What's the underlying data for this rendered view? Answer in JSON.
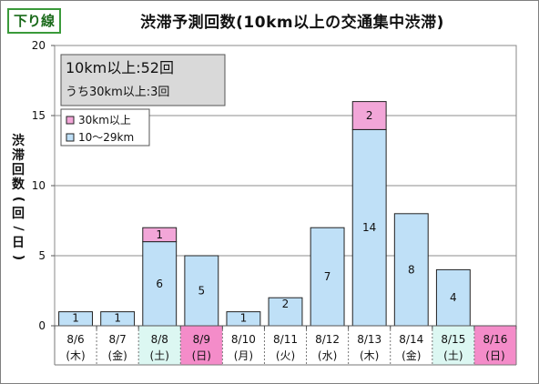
{
  "direction": "下り線",
  "title": "渋滞予測回数(10km以上の交通集中渋滞)",
  "summary": {
    "line1": "10km以上:52回",
    "line2": "うち30km以上:3回"
  },
  "colors": {
    "long": "#f2a6d8",
    "short": "#bfe0f7",
    "weekday_bg": "#ffffff",
    "saturday_bg": "#dcf7f2",
    "sunday_bg": "#f48cc9"
  },
  "chart_data": {
    "type": "bar",
    "stacked": true,
    "ylabel": "渋滞回数(回/日)",
    "ylim": [
      0,
      20
    ],
    "yticks": [
      0,
      5,
      10,
      15,
      20
    ],
    "grid": true,
    "legend_position": "top-left",
    "categories": [
      {
        "date": "8/6",
        "dow": "(木)",
        "day_type": "weekday"
      },
      {
        "date": "8/7",
        "dow": "(金)",
        "day_type": "weekday"
      },
      {
        "date": "8/8",
        "dow": "(土)",
        "day_type": "saturday"
      },
      {
        "date": "8/9",
        "dow": "(日)",
        "day_type": "sunday"
      },
      {
        "date": "8/10",
        "dow": "(月)",
        "day_type": "weekday"
      },
      {
        "date": "8/11",
        "dow": "(火)",
        "day_type": "weekday"
      },
      {
        "date": "8/12",
        "dow": "(水)",
        "day_type": "weekday"
      },
      {
        "date": "8/13",
        "dow": "(木)",
        "day_type": "weekday"
      },
      {
        "date": "8/14",
        "dow": "(金)",
        "day_type": "weekday"
      },
      {
        "date": "8/15",
        "dow": "(土)",
        "day_type": "saturday"
      },
      {
        "date": "8/16",
        "dow": "(日)",
        "day_type": "sunday"
      }
    ],
    "series": [
      {
        "name": "10〜29km",
        "key": "short",
        "values": [
          1,
          1,
          6,
          5,
          1,
          2,
          7,
          14,
          8,
          4,
          0
        ]
      },
      {
        "name": "30km以上",
        "key": "long",
        "values": [
          0,
          0,
          1,
          0,
          0,
          0,
          0,
          2,
          0,
          0,
          0
        ]
      }
    ]
  }
}
